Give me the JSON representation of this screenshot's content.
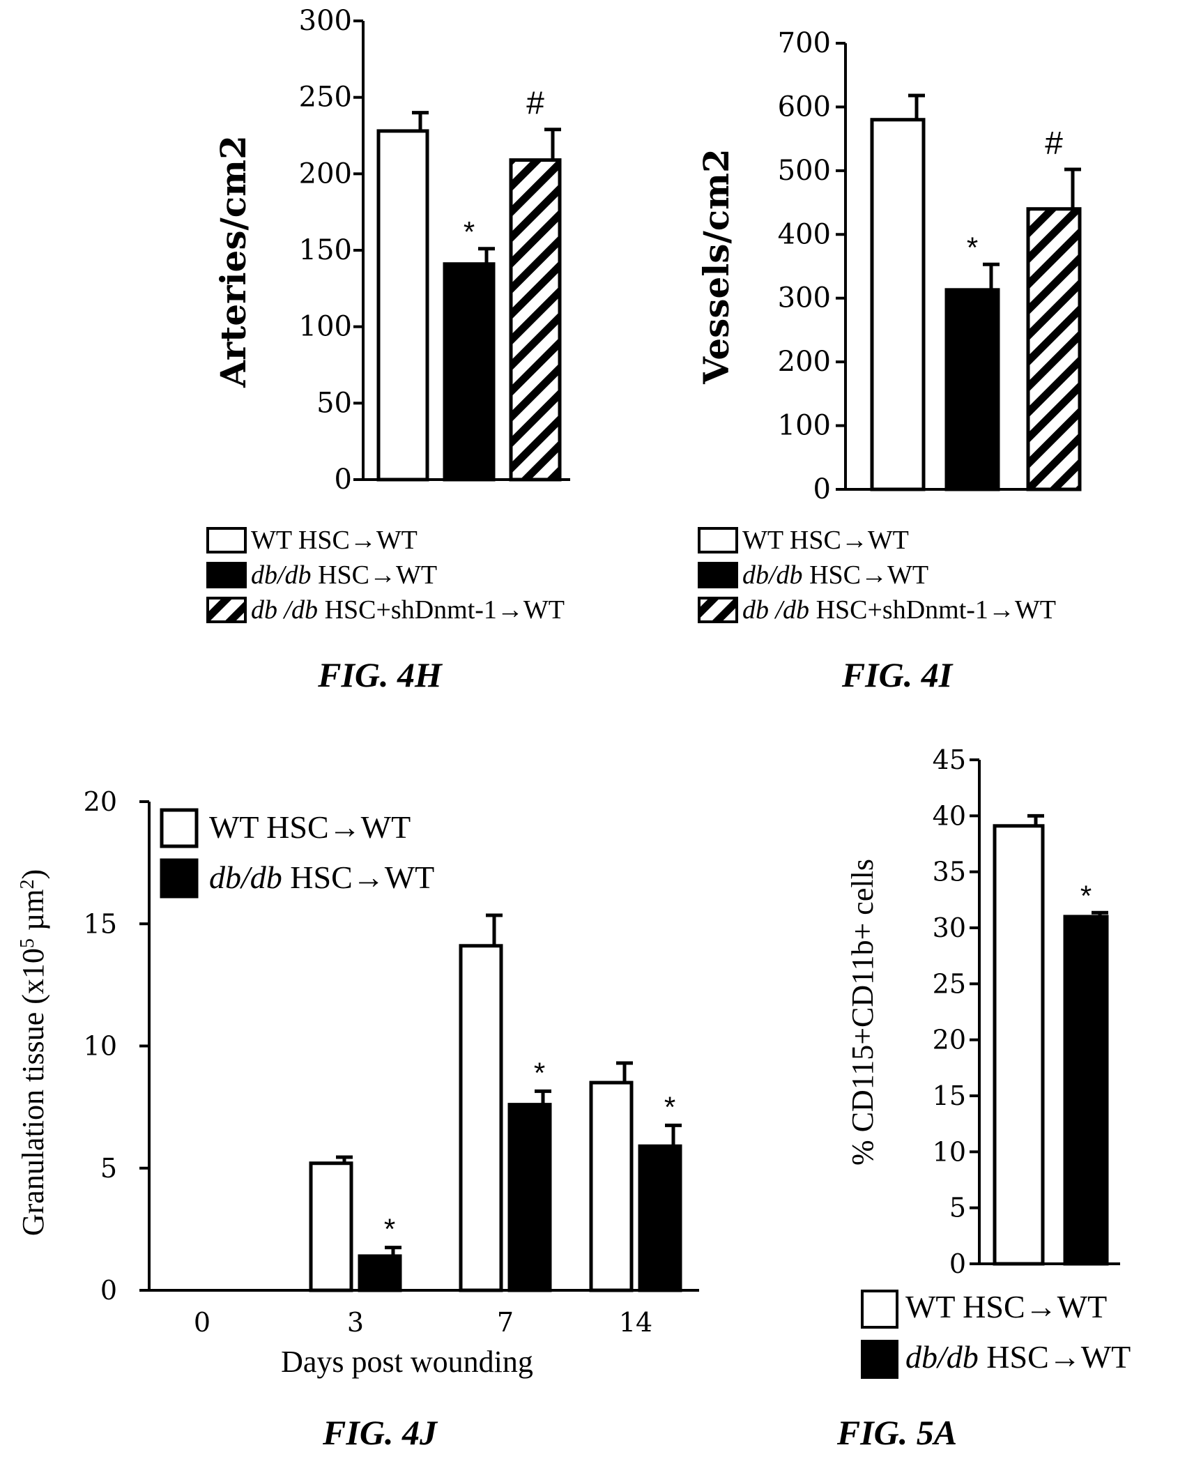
{
  "chart_data": [
    {
      "id": "4H",
      "type": "bar",
      "figure_label": "FIG. 4H",
      "ylabel": "Arteries/cm2",
      "ylim": [
        0,
        300
      ],
      "yticks": [
        0,
        50,
        100,
        150,
        200,
        250,
        300
      ],
      "categories": [
        "WT  HSC→WT",
        "db/db HSC→WT",
        "db /db HSC+shDnmt-1→WT"
      ],
      "values": [
        228,
        141,
        209
      ],
      "errors": [
        12,
        10,
        20
      ],
      "fills": [
        "white",
        "black",
        "hatch"
      ],
      "annotations": [
        "",
        "*",
        "#"
      ],
      "legend": [
        {
          "italic": "",
          "text": "WT  HSC→WT",
          "fill": "white"
        },
        {
          "italic": "db/db",
          "text": " HSC→WT",
          "fill": "black"
        },
        {
          "italic": "db /db",
          "text": " HSC+shDnmt-1→WT",
          "fill": "hatch"
        }
      ],
      "legend_position": "below"
    },
    {
      "id": "4I",
      "type": "bar",
      "figure_label": "FIG. 4I",
      "ylabel": "Vessels/cm2",
      "ylim": [
        0,
        700
      ],
      "yticks": [
        0,
        100,
        200,
        300,
        400,
        500,
        600,
        700
      ],
      "categories": [
        "WT  HSC→WT",
        "db/db HSC→WT",
        "db /db HSC+shDnmt-1→WT"
      ],
      "values": [
        580,
        313,
        440
      ],
      "errors": [
        38,
        40,
        62
      ],
      "fills": [
        "white",
        "black",
        "hatch"
      ],
      "annotations": [
        "",
        "*",
        "#"
      ],
      "legend": [
        {
          "italic": "",
          "text": "WT  HSC→WT",
          "fill": "white"
        },
        {
          "italic": "db/db",
          "text": " HSC→WT",
          "fill": "black"
        },
        {
          "italic": "db /db",
          "text": " HSC+shDnmt-1→WT",
          "fill": "hatch"
        }
      ],
      "legend_position": "below"
    },
    {
      "id": "4J",
      "type": "bar",
      "figure_label": "FIG. 4J",
      "xlabel": "Days post wounding",
      "ylabel": "Granulation tissue (x10",
      "ylabel_sup": "5",
      "ylabel_end": " µm",
      "ylabel_sup2": "2",
      "ylabel_close": ")",
      "ylim": [
        0,
        20
      ],
      "yticks": [
        0,
        5,
        10,
        15,
        20
      ],
      "categories": [
        "0",
        "3",
        "7",
        "14"
      ],
      "series": [
        {
          "name": "WT HSC→WT",
          "values": [
            0,
            5.2,
            14.1,
            8.5
          ],
          "errors": [
            0,
            0.25,
            1.25,
            0.8
          ],
          "fill": "white",
          "annotations": [
            "",
            "",
            "",
            ""
          ]
        },
        {
          "name": "db/db HSC→WT",
          "values": [
            0,
            1.4,
            7.6,
            5.9
          ],
          "errors": [
            0,
            0.35,
            0.55,
            0.85
          ],
          "fill": "black",
          "annotations": [
            "",
            "*",
            "*",
            "*"
          ]
        }
      ],
      "legend": [
        {
          "italic": "",
          "text": "WT HSC→WT",
          "fill": "white"
        },
        {
          "italic": "db/db",
          "text": " HSC→WT",
          "fill": "black"
        }
      ],
      "legend_position": "top-left"
    },
    {
      "id": "5A",
      "type": "bar",
      "figure_label": "FIG. 5A",
      "ylabel": "% CD115+CD11b+ cells",
      "ylim": [
        0,
        45
      ],
      "yticks": [
        0,
        5,
        10,
        15,
        20,
        25,
        30,
        35,
        40,
        45
      ],
      "categories": [
        "WT HSC→WT",
        "db/db HSC→WT"
      ],
      "values": [
        39.1,
        31.0
      ],
      "errors": [
        0.9,
        0.35
      ],
      "fills": [
        "white",
        "black"
      ],
      "annotations": [
        "",
        "*"
      ],
      "legend": [
        {
          "italic": "",
          "text": "WT HSC→WT",
          "fill": "white"
        },
        {
          "italic": "db/db",
          "text": " HSC→WT",
          "fill": "black"
        }
      ],
      "legend_position": "below"
    }
  ]
}
